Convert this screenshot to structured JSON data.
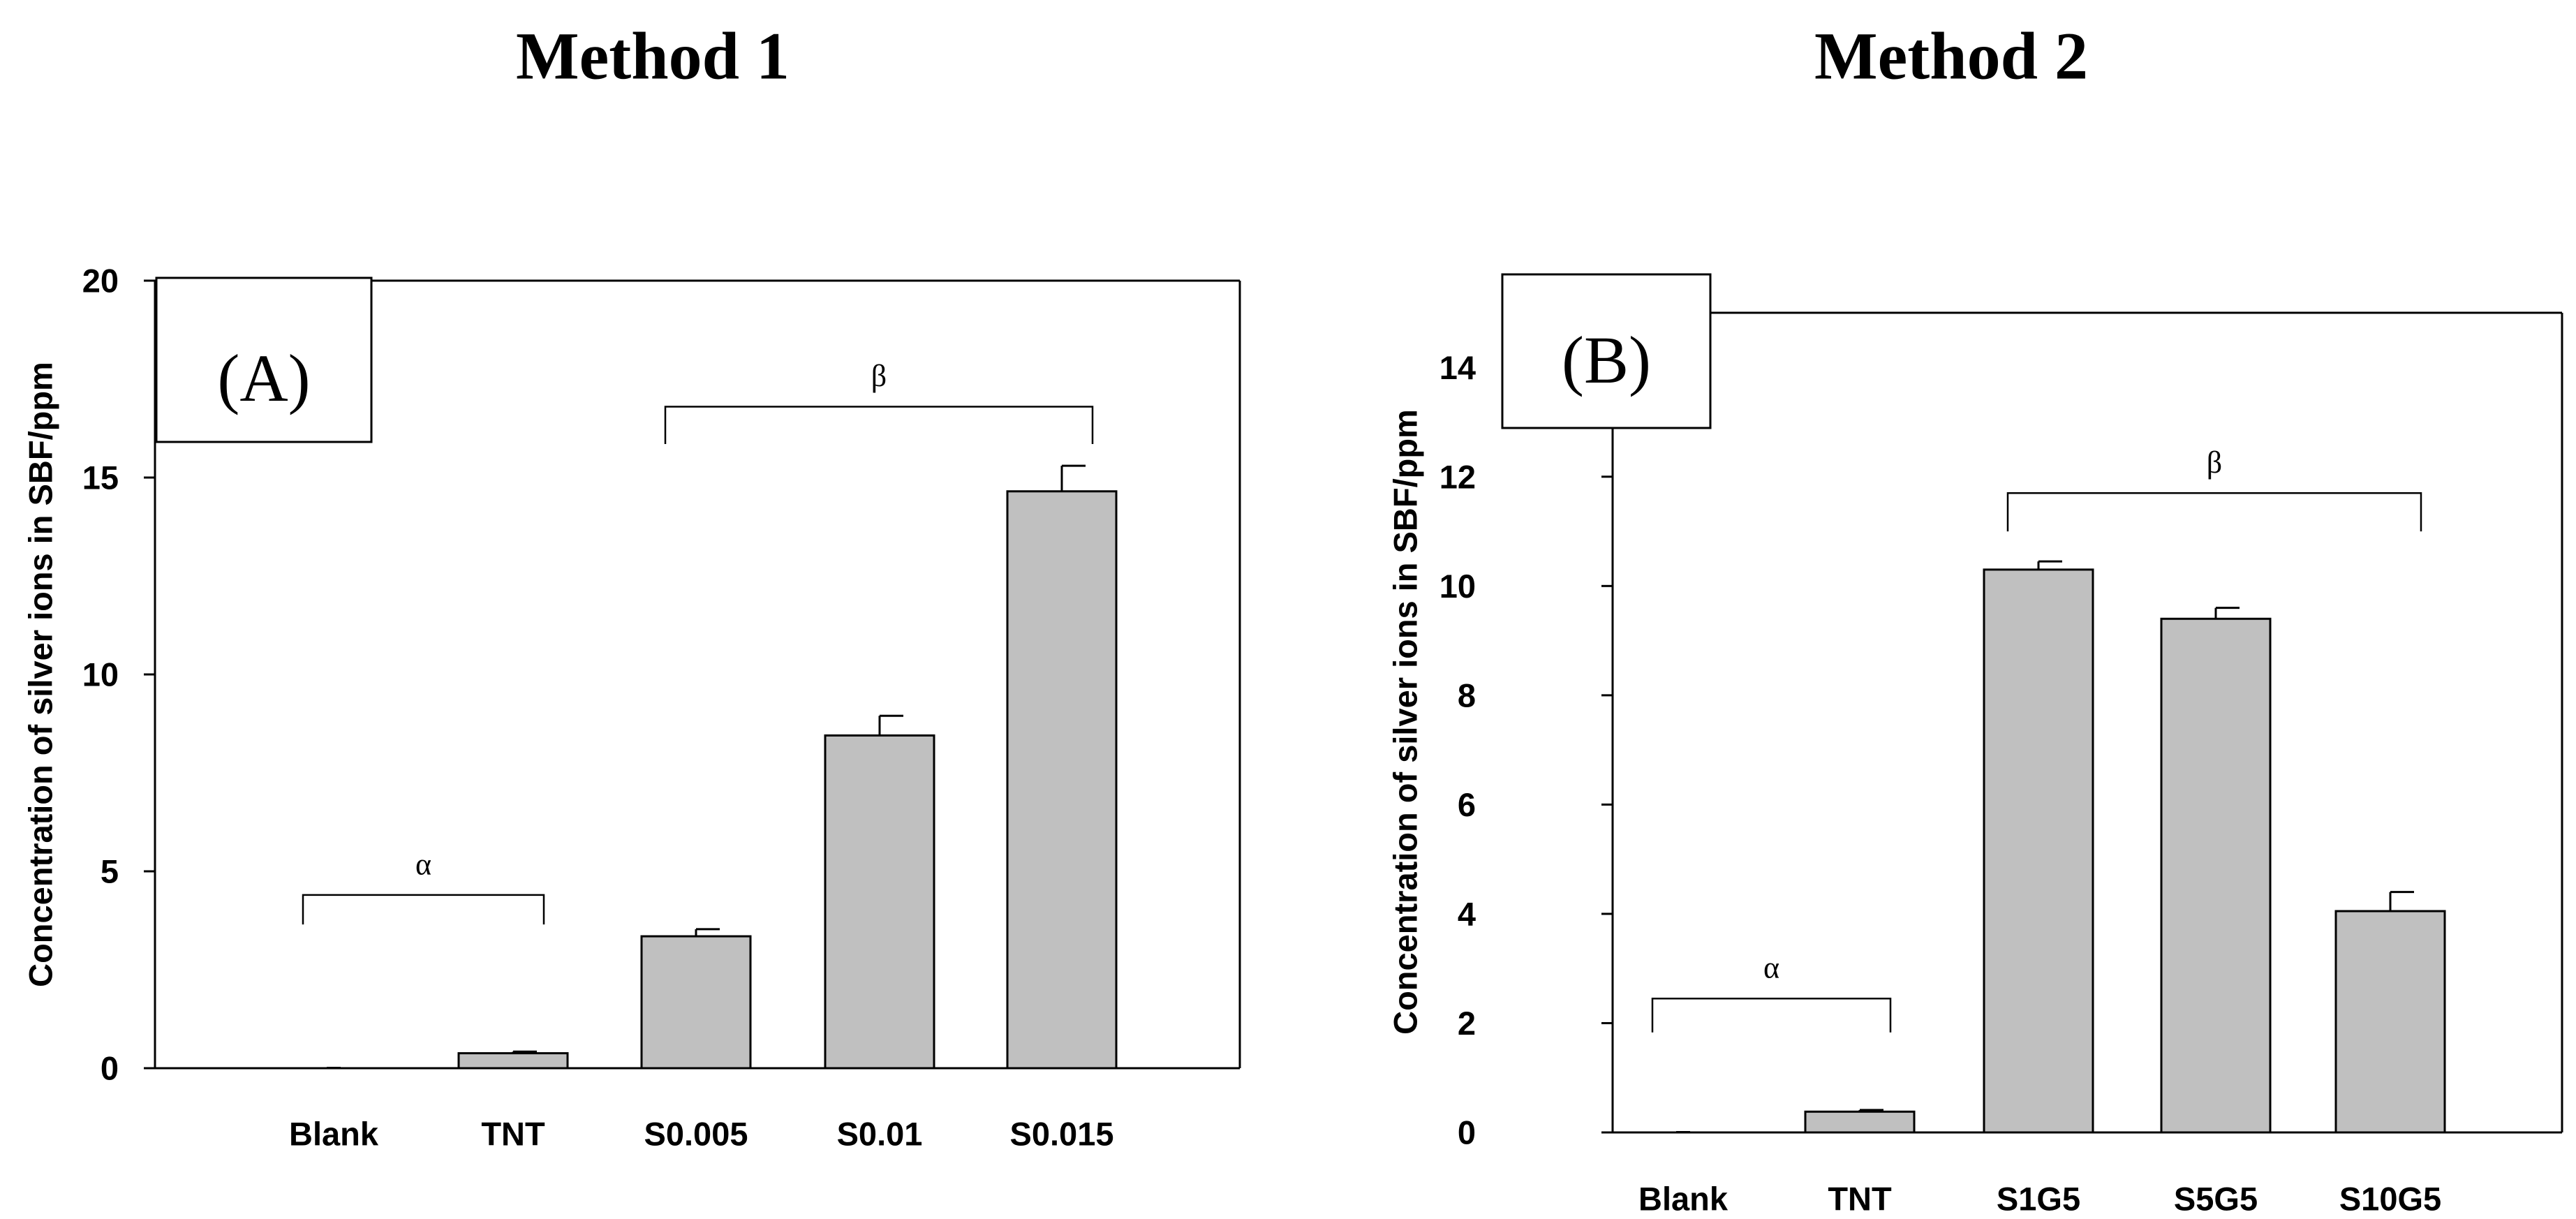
{
  "chart_data": [
    {
      "type": "bar",
      "title": "Method 1",
      "panel_label": "(A)",
      "ylabel": "Concentration of silver ions in SBF/ppm",
      "xlabel": "",
      "categories": [
        "Blank",
        "TNT",
        "S0.005",
        "S0.01",
        "S0.015"
      ],
      "values": [
        0,
        0.38,
        3.35,
        8.45,
        14.65
      ],
      "errors": [
        0,
        0.04,
        0.18,
        0.5,
        0.65
      ],
      "ylim": [
        0,
        20
      ],
      "yticks": [
        0,
        5,
        10,
        15,
        20
      ],
      "bar_color": "#c0c0c0",
      "significance": [
        {
          "symbol": "α",
          "from": 0,
          "to": 1,
          "level": 4.4,
          "drop": 0.75
        },
        {
          "symbol": "β",
          "from": 2,
          "to": 4,
          "level": 16.8,
          "drop": 0.95
        }
      ]
    },
    {
      "type": "bar",
      "title": "Method 2",
      "panel_label": "(B)",
      "ylabel": "Concentration of silver ions in SBF/ppm",
      "xlabel": "",
      "categories": [
        "Blank",
        "TNT",
        "S1G5",
        "S5G5",
        "S10G5"
      ],
      "values": [
        0,
        0.38,
        10.3,
        9.4,
        4.05
      ],
      "errors": [
        0,
        0.03,
        0.15,
        0.2,
        0.35
      ],
      "ylim": [
        0,
        15
      ],
      "yticks": [
        0,
        2,
        4,
        6,
        8,
        10,
        12,
        14
      ],
      "bar_color": "#c0c0c0",
      "significance": [
        {
          "symbol": "α",
          "from": 0,
          "to": 1,
          "level": 2.45,
          "drop": 0.62
        },
        {
          "symbol": "β",
          "from": 2,
          "to": 4,
          "level": 11.7,
          "drop": 0.7
        }
      ]
    }
  ]
}
